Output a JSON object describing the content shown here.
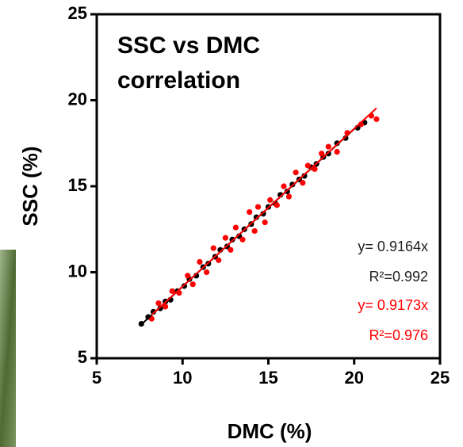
{
  "chart_data": {
    "type": "scatter",
    "title": "SSC vs DMC correlation",
    "x_label": "DMC (%)",
    "y_label": "SSC (%)",
    "xlim": [
      5,
      25
    ],
    "ylim": [
      5,
      25
    ],
    "xticks": [
      5,
      10,
      15,
      20,
      25
    ],
    "yticks": [
      5,
      10,
      15,
      20,
      25
    ],
    "series": [
      {
        "color": "#000000",
        "fit_slope": 0.9164,
        "fit_label": "y= 0.9164x",
        "r2_label": "R²=0.992",
        "x": [
          7.6,
          8.0,
          8.3,
          8.7,
          9.0,
          9.3,
          9.7,
          10.1,
          10.4,
          10.8,
          11.2,
          11.5,
          11.9,
          12.2,
          12.6,
          12.9,
          13.3,
          13.6,
          14.0,
          14.3,
          14.7,
          15.0,
          15.4,
          15.7,
          16.1,
          16.4,
          16.8,
          17.1,
          17.5,
          17.8,
          18.2,
          18.5,
          19.0,
          19.5,
          20.2,
          20.6
        ],
        "values": [
          7.0,
          7.4,
          7.7,
          7.9,
          8.3,
          8.4,
          8.9,
          9.2,
          9.6,
          9.8,
          10.3,
          10.5,
          10.9,
          11.3,
          11.5,
          11.9,
          12.1,
          12.5,
          12.8,
          13.2,
          13.4,
          13.8,
          14.0,
          14.5,
          14.7,
          15.1,
          15.4,
          15.6,
          16.1,
          16.3,
          16.7,
          16.9,
          17.5,
          17.8,
          18.4,
          18.7
        ]
      },
      {
        "color": "#ff0000",
        "fit_slope": 0.9173,
        "fit_label": "y= 0.9173x",
        "r2_label": "R²=0.976",
        "x": [
          8.2,
          8.6,
          9.0,
          9.4,
          9.8,
          10.3,
          10.6,
          11.0,
          11.4,
          11.8,
          12.1,
          12.5,
          12.8,
          13.1,
          13.5,
          13.9,
          14.2,
          14.4,
          14.8,
          15.1,
          15.5,
          15.9,
          16.2,
          16.6,
          17.0,
          17.3,
          17.7,
          18.1,
          18.5,
          19.0,
          19.6,
          20.4,
          21.0,
          21.3
        ],
        "values": [
          7.3,
          8.2,
          8.0,
          8.9,
          8.8,
          9.8,
          9.3,
          10.6,
          10.0,
          11.4,
          10.7,
          12.0,
          11.3,
          12.6,
          11.9,
          13.5,
          12.4,
          13.8,
          12.9,
          14.2,
          13.9,
          15.0,
          14.4,
          15.8,
          15.2,
          16.2,
          16.0,
          16.9,
          17.3,
          17.0,
          18.1,
          18.6,
          19.1,
          18.9
        ]
      }
    ]
  }
}
